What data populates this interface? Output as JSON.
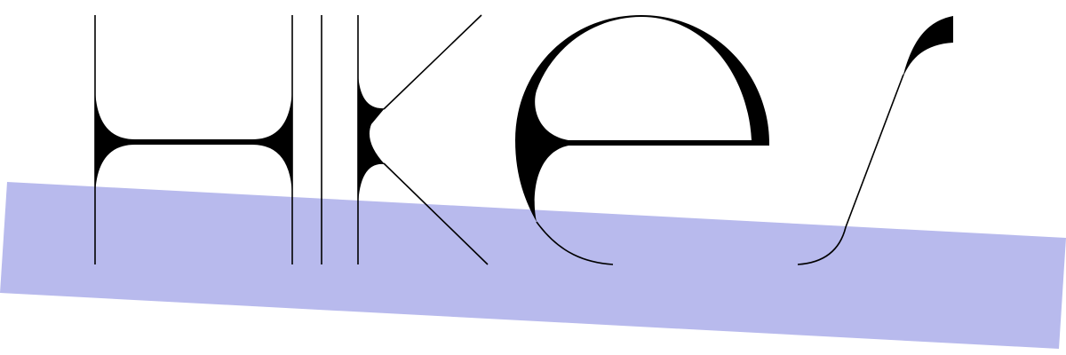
{
  "logo": {
    "text": "Hikes"
  }
}
